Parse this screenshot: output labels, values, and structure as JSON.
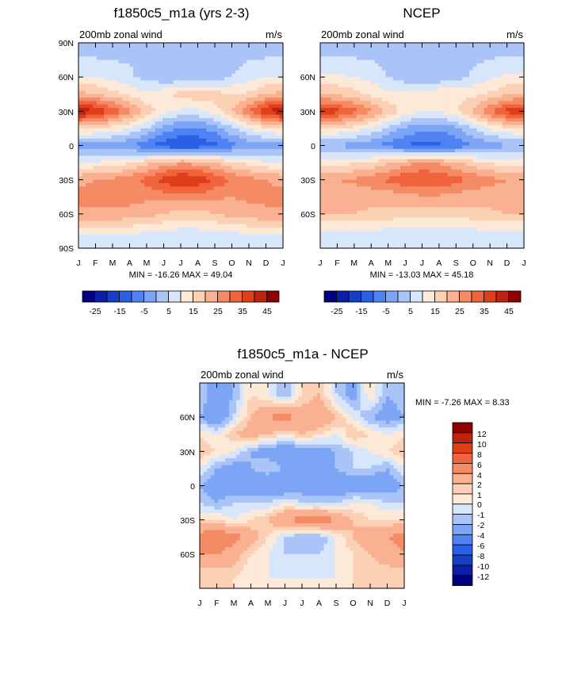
{
  "palette": [
    "#00007f",
    "#0a1ea8",
    "#1440c8",
    "#2a60e6",
    "#4f82f2",
    "#7da5f5",
    "#aac4f7",
    "#d8e6fb",
    "#fde9d8",
    "#fcd0b4",
    "#f9b191",
    "#f58b64",
    "#ef643c",
    "#de3e1a",
    "#bf2310",
    "#8c0000"
  ],
  "chart_data": [
    {
      "type": "heatmap",
      "id": "model",
      "title": "f1850c5_m1a (yrs 2-3)",
      "left_label": "200mb zonal wind",
      "right_label": "m/s",
      "x_tick_labels": [
        "J",
        "F",
        "M",
        "A",
        "M",
        "J",
        "J",
        "A",
        "S",
        "O",
        "N",
        "D",
        "J"
      ],
      "y_tick_labels": [
        "90N",
        "60N",
        "30N",
        "0",
        "30S",
        "60S",
        "90S"
      ],
      "y_values": [
        90,
        60,
        30,
        0,
        -30,
        -60,
        -90
      ],
      "ylim": [
        -90,
        90
      ],
      "stats_text": "MIN = -16.26 MAX =  49.04",
      "min": -16.26,
      "max": 49.04,
      "levels": [
        -30,
        -25,
        -20,
        -15,
        -10,
        -5,
        0,
        5,
        10,
        15,
        20,
        25,
        30,
        35,
        40,
        45
      ],
      "colorbar_labels": [
        "-25",
        "-15",
        "-5",
        "5",
        "15",
        "25",
        "35",
        "45"
      ],
      "grid_lat": [
        80,
        60,
        45,
        30,
        15,
        0,
        -15,
        -30,
        -45,
        -60,
        -80
      ],
      "grid_month": [
        "J",
        "F",
        "M",
        "A",
        "M",
        "J",
        "J",
        "A",
        "S",
        "O",
        "N",
        "D",
        "J"
      ],
      "values": [
        [
          4,
          4,
          4,
          4,
          3,
          2,
          1,
          1,
          2,
          3,
          4,
          4,
          4
        ],
        [
          10,
          10,
          8,
          6,
          3,
          1,
          0,
          0,
          2,
          5,
          8,
          10,
          10
        ],
        [
          22,
          20,
          17,
          14,
          11,
          14,
          17,
          18,
          17,
          15,
          16,
          20,
          22
        ],
        [
          45,
          40,
          34,
          26,
          18,
          12,
          9,
          9,
          13,
          20,
          30,
          40,
          45
        ],
        [
          16,
          15,
          13,
          10,
          5,
          -2,
          -6,
          -6,
          -3,
          4,
          10,
          14,
          16
        ],
        [
          -2,
          -2,
          -3,
          -5,
          -9,
          -13,
          -15,
          -14,
          -11,
          -7,
          -4,
          -2,
          -2
        ],
        [
          10,
          11,
          12,
          14,
          18,
          22,
          24,
          23,
          20,
          16,
          13,
          11,
          10
        ],
        [
          24,
          25,
          26,
          28,
          32,
          37,
          41,
          39,
          34,
          30,
          27,
          25,
          24
        ],
        [
          26,
          27,
          27,
          27,
          26,
          27,
          28,
          28,
          26,
          25,
          26,
          26,
          26
        ],
        [
          24,
          24,
          24,
          23,
          22,
          20,
          18,
          18,
          20,
          22,
          23,
          24,
          24
        ],
        [
          8,
          8,
          8,
          8,
          7,
          6,
          6,
          6,
          6,
          7,
          8,
          8,
          8
        ]
      ]
    },
    {
      "type": "heatmap",
      "id": "ncep",
      "title": "NCEP",
      "left_label": "200mb zonal wind",
      "right_label": "m/s",
      "x_tick_labels": [
        "J",
        "F",
        "M",
        "A",
        "M",
        "J",
        "J",
        "A",
        "S",
        "O",
        "N",
        "D",
        "J"
      ],
      "y_tick_labels": [
        "60N",
        "30N",
        "0",
        "30S",
        "60S"
      ],
      "y_values": [
        60,
        30,
        0,
        -30,
        -60
      ],
      "ylim": [
        -90,
        90
      ],
      "stats_text": "MIN = -13.03 MAX =  45.18",
      "min": -13.03,
      "max": 45.18,
      "levels": [
        -30,
        -25,
        -20,
        -15,
        -10,
        -5,
        0,
        5,
        10,
        15,
        20,
        25,
        30,
        35,
        40,
        45
      ],
      "colorbar_labels": [
        "-25",
        "-15",
        "-5",
        "5",
        "15",
        "25",
        "35",
        "45"
      ],
      "grid_lat": [
        80,
        60,
        45,
        30,
        15,
        0,
        -15,
        -30,
        -45,
        -60,
        -80
      ],
      "grid_month": [
        "J",
        "F",
        "M",
        "A",
        "M",
        "J",
        "J",
        "A",
        "S",
        "O",
        "N",
        "D",
        "J"
      ],
      "values": [
        [
          4,
          4,
          4,
          4,
          3,
          2,
          1,
          1,
          2,
          3,
          4,
          4,
          4
        ],
        [
          11,
          11,
          10,
          8,
          5,
          2,
          1,
          1,
          3,
          6,
          9,
          11,
          11
        ],
        [
          20,
          19,
          17,
          14,
          11,
          12,
          13,
          14,
          14,
          14,
          16,
          19,
          20
        ],
        [
          40,
          37,
          32,
          26,
          19,
          13,
          10,
          10,
          14,
          21,
          30,
          37,
          40
        ],
        [
          16,
          15,
          13,
          9,
          4,
          -1,
          -4,
          -4,
          -1,
          5,
          11,
          14,
          16
        ],
        [
          -1,
          -1,
          -2,
          -4,
          -7,
          -10,
          -12,
          -11,
          -9,
          -5,
          -3,
          -1,
          -1
        ],
        [
          12,
          13,
          14,
          16,
          19,
          23,
          25,
          24,
          21,
          17,
          14,
          13,
          12
        ],
        [
          24,
          25,
          26,
          28,
          31,
          34,
          36,
          35,
          32,
          29,
          27,
          25,
          24
        ],
        [
          22,
          22,
          22,
          22,
          22,
          23,
          24,
          24,
          23,
          22,
          22,
          22,
          22
        ],
        [
          20,
          20,
          20,
          19,
          18,
          17,
          16,
          16,
          17,
          18,
          19,
          20,
          20
        ],
        [
          6,
          6,
          6,
          6,
          6,
          5,
          5,
          5,
          5,
          6,
          6,
          6,
          6
        ]
      ]
    },
    {
      "type": "heatmap",
      "id": "diff",
      "title": "f1850c5_m1a - NCEP",
      "left_label": "200mb zonal wind",
      "right_label": "m/s",
      "x_tick_labels": [
        "J",
        "F",
        "M",
        "A",
        "M",
        "J",
        "J",
        "A",
        "S",
        "O",
        "N",
        "D",
        "J"
      ],
      "y_tick_labels": [
        "60N",
        "30N",
        "0",
        "30S",
        "60S"
      ],
      "y_values": [
        60,
        30,
        0,
        -30,
        -60
      ],
      "ylim": [
        -90,
        90
      ],
      "stats_text": "MIN =  -7.26 MAX =   8.33",
      "min": -7.26,
      "max": 8.33,
      "levels": [
        -14,
        -12,
        -10,
        -8,
        -6,
        -4,
        -2,
        -1,
        0,
        1,
        2,
        4,
        6,
        8,
        10,
        12
      ],
      "colorbar_labels": [
        "12",
        "10",
        "8",
        "6",
        "4",
        "2",
        "1",
        "0",
        "-1",
        "-2",
        "-4",
        "-6",
        "-8",
        "-10",
        "-12"
      ],
      "grid_lat": [
        80,
        60,
        45,
        30,
        15,
        0,
        -15,
        -30,
        -45,
        -60,
        -80
      ],
      "grid_month": [
        "J",
        "F",
        "M",
        "A",
        "M",
        "J",
        "J",
        "A",
        "S",
        "O",
        "N",
        "D",
        "J"
      ],
      "values": [
        [
          -1,
          -3,
          -2,
          1,
          0,
          -2,
          1,
          2,
          -1,
          -3,
          1,
          -2,
          -1
        ],
        [
          -2,
          -4,
          -1,
          2,
          4,
          5,
          3,
          4,
          2,
          0,
          -2,
          -3,
          -2
        ],
        [
          1,
          0,
          2,
          3,
          2,
          1,
          2,
          1,
          0,
          2,
          1,
          0,
          1
        ],
        [
          2,
          1,
          0,
          -2,
          -3,
          -4,
          -3,
          -3,
          -2,
          -1,
          0,
          1,
          2
        ],
        [
          0,
          -2,
          -3,
          -2,
          -1,
          -2,
          -3,
          -3,
          -2,
          -1,
          -1,
          -2,
          0
        ],
        [
          -2,
          -3,
          -3,
          -4,
          -4,
          -4,
          -3,
          -4,
          -4,
          -3,
          -4,
          -3,
          -2
        ],
        [
          -1,
          -2,
          -1,
          -1,
          -1,
          0,
          -1,
          -1,
          -1,
          0,
          0,
          -1,
          -1
        ],
        [
          1,
          1,
          0,
          1,
          2,
          4,
          5,
          6,
          4,
          2,
          1,
          1,
          1
        ],
        [
          5,
          6,
          5,
          3,
          1,
          -1,
          -2,
          -2,
          0,
          2,
          3,
          4,
          5
        ],
        [
          4,
          4,
          3,
          1,
          0,
          -1,
          -1,
          -1,
          0,
          1,
          2,
          3,
          4
        ],
        [
          1,
          1,
          1,
          0,
          0,
          0,
          0,
          0,
          0,
          1,
          1,
          1,
          1
        ]
      ]
    }
  ]
}
